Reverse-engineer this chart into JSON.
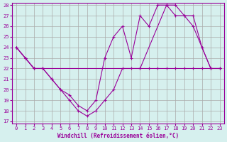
{
  "xlabel": "Windchill (Refroidissement éolien,°C)",
  "background_color": "#d6f0ee",
  "line_color": "#990099",
  "grid_color": "#aaaaaa",
  "ylim": [
    17,
    28
  ],
  "xlim": [
    0,
    23
  ],
  "yticks": [
    17,
    18,
    19,
    20,
    21,
    22,
    23,
    24,
    25,
    26,
    27,
    28
  ],
  "xticks": [
    0,
    1,
    2,
    3,
    4,
    5,
    6,
    7,
    8,
    9,
    10,
    11,
    12,
    13,
    14,
    15,
    16,
    17,
    18,
    19,
    20,
    21,
    22,
    23
  ],
  "line1_x": [
    0,
    1,
    2,
    3,
    4,
    5,
    6,
    7,
    8,
    9,
    10,
    11,
    12,
    13,
    14,
    15,
    16,
    17,
    18,
    19,
    20,
    21,
    22,
    23
  ],
  "line1_y": [
    24,
    23,
    22,
    22,
    21,
    20,
    19,
    18,
    17.5,
    18,
    19,
    20,
    22,
    22,
    22,
    22,
    22,
    22,
    22,
    22,
    22,
    22,
    22,
    22
  ],
  "line2_x": [
    0,
    1,
    2,
    3,
    4,
    5,
    6,
    7,
    8,
    9,
    10,
    11,
    12,
    13,
    14,
    15,
    16,
    17,
    18,
    19,
    20,
    21,
    22,
    23
  ],
  "line2_y": [
    24,
    23,
    22,
    22,
    21,
    20,
    19.5,
    18.5,
    18,
    19,
    23,
    25,
    26,
    23,
    27,
    26,
    28,
    28,
    27,
    27,
    26,
    24,
    22,
    22
  ],
  "line3_x": [
    0,
    1,
    2,
    3,
    14,
    17,
    18,
    19,
    20,
    21,
    22,
    23
  ],
  "line3_y": [
    24,
    23,
    22,
    22,
    22,
    28,
    28,
    27,
    27,
    24,
    22,
    22
  ]
}
